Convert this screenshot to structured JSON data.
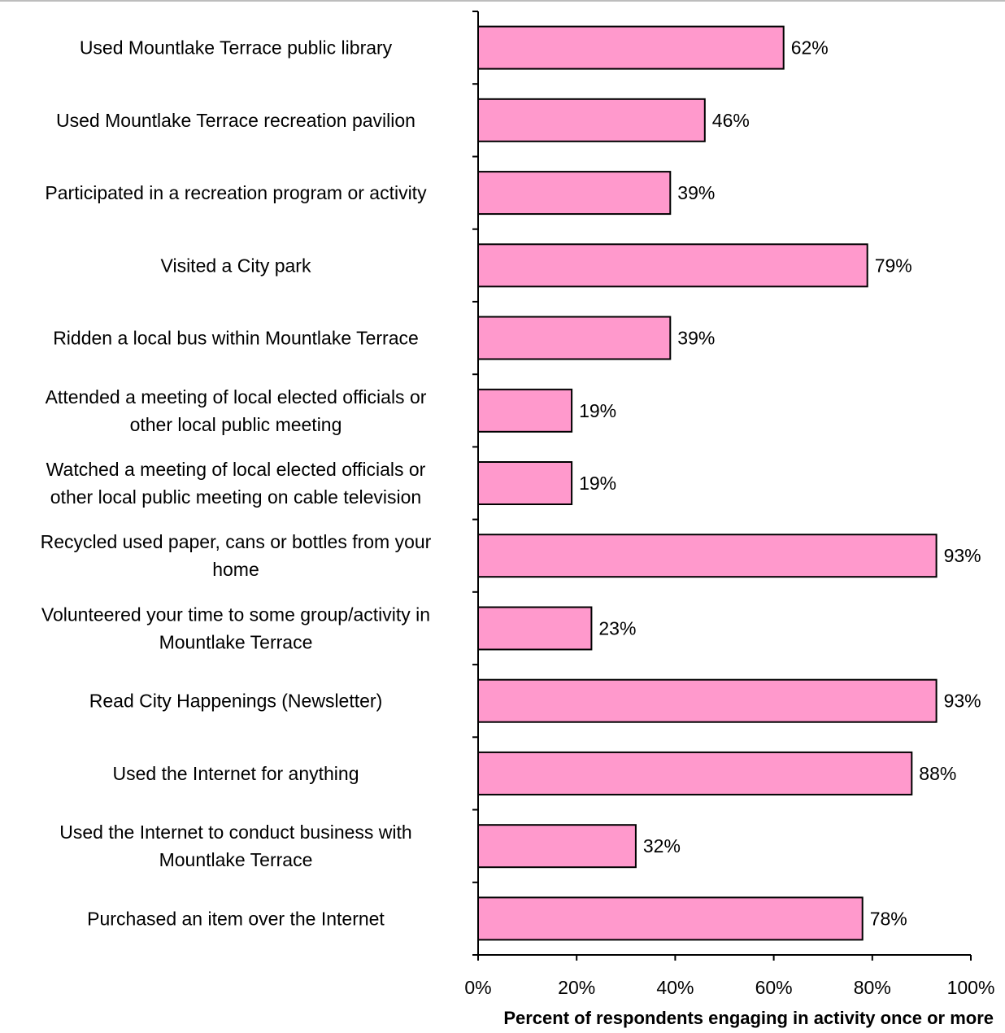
{
  "chart_data": {
    "type": "bar",
    "orientation": "horizontal",
    "title": "",
    "xlabel": "Percent of respondents engaging in activity once or more",
    "ylabel": "",
    "xlim": [
      0,
      100
    ],
    "x_ticks": [
      "0%",
      "20%",
      "40%",
      "60%",
      "80%",
      "100%"
    ],
    "grid": false,
    "bar_color": "#ff99cc",
    "bar_outline_color": "#000000",
    "categories": [
      [
        "Used Mountlake Terrace public library"
      ],
      [
        "Used Mountlake Terrace recreation pavilion"
      ],
      [
        "Participated in a recreation program or activity"
      ],
      [
        "Visited a City park"
      ],
      [
        "Ridden a local bus within Mountlake Terrace"
      ],
      [
        "Attended a meeting of local elected officials or",
        "other local public meeting"
      ],
      [
        "Watched a meeting of local elected officials or",
        "other local public meeting on cable television"
      ],
      [
        "Recycled used paper, cans or bottles from your",
        "home"
      ],
      [
        "Volunteered your time to some group/activity in",
        "Mountlake Terrace"
      ],
      [
        "Read City Happenings (Newsletter)"
      ],
      [
        "Used the Internet for anything"
      ],
      [
        "Used the Internet to conduct business with",
        "Mountlake Terrace"
      ],
      [
        "Purchased an item over the Internet"
      ]
    ],
    "values": [
      62,
      46,
      39,
      79,
      39,
      19,
      19,
      93,
      23,
      93,
      88,
      32,
      78
    ],
    "value_labels": [
      "62%",
      "46%",
      "39%",
      "79%",
      "39%",
      "19%",
      "19%",
      "93%",
      "23%",
      "93%",
      "88%",
      "32%",
      "78%"
    ]
  }
}
